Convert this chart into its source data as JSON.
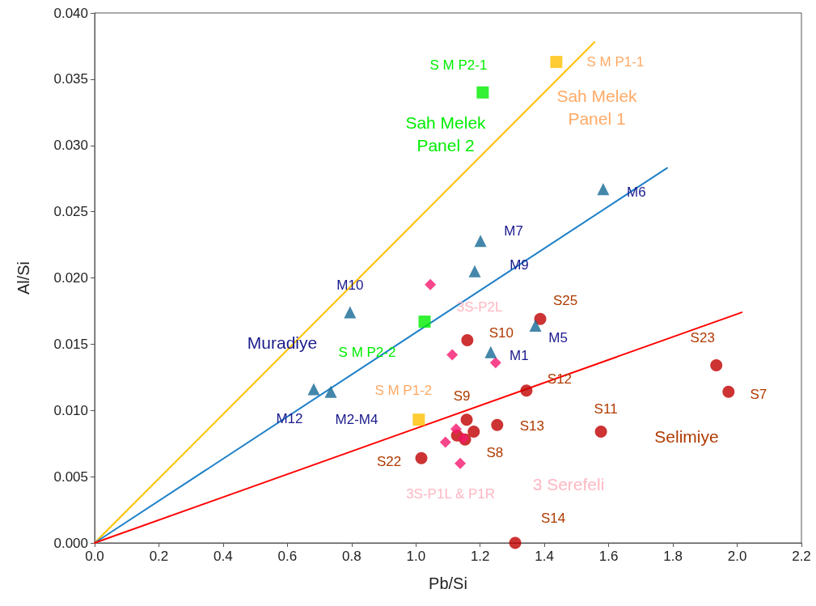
{
  "chart_data": {
    "type": "scatter",
    "xlabel": "Pb/Si",
    "ylabel": "Al/Si",
    "xlim": [
      0,
      2.2
    ],
    "xticks": [
      {
        "value": 0,
        "label": "0.0"
      },
      0.2,
      0.4,
      0.6,
      0.8,
      {
        "value": 1,
        "label": "1.0"
      },
      1.2,
      1.4,
      1.6,
      1.8,
      {
        "value": 2,
        "label": "2.0"
      },
      2.2
    ],
    "ylim": [
      0,
      0.04
    ],
    "yticks": [
      {
        "value": 0,
        "label": "0.000"
      },
      {
        "value": 0.005,
        "label": "0.005"
      },
      {
        "value": 0.01,
        "label": "0.010"
      },
      {
        "value": 0.015,
        "label": "0.015"
      },
      {
        "value": 0.02,
        "label": "0.020"
      },
      {
        "value": 0.025,
        "label": "0.025"
      },
      {
        "value": 0.03,
        "label": "0.030"
      },
      {
        "value": 0.035,
        "label": "0.035"
      },
      {
        "value": 0.04,
        "label": "0.040"
      }
    ],
    "grid": false,
    "series": [
      {
        "type": "line",
        "color": "#ffc000",
        "marker": "none",
        "x": [
          0,
          1.556
        ],
        "values": [
          0,
          0.0378
        ]
      },
      {
        "type": "line",
        "color": "#1f80c8",
        "marker": "none",
        "x": [
          0,
          1.782
        ],
        "values": [
          0,
          0.0283
        ]
      },
      {
        "type": "line",
        "color": "#ff0000",
        "marker": "none",
        "x": [
          0,
          2.014
        ],
        "values": [
          0,
          0.0174
        ]
      },
      {
        "color": "#156996",
        "marker": "triangle",
        "x": [
          1.583,
          1.201,
          1.183,
          0.795,
          1.372,
          1.233,
          0.682,
          0.735
        ],
        "values": [
          0.0267,
          0.0228,
          0.0205,
          0.0174,
          0.0164,
          0.0144,
          0.0116,
          0.0114
        ]
      },
      {
        "color": "#00ee00",
        "marker": "square",
        "x": [
          1.208,
          1.027
        ],
        "values": [
          0.034,
          0.0167
        ]
      },
      {
        "color": "#ffc000",
        "marker": "square",
        "x": [
          1.437,
          1.009
        ],
        "values": [
          0.0363,
          0.0093
        ]
      },
      {
        "color": "#f5186e",
        "marker": "diamond",
        "x": [
          1.045,
          1.113,
          1.248,
          1.125,
          1.092,
          1.148,
          1.138
        ],
        "values": [
          0.0195,
          0.0142,
          0.0136,
          0.0086,
          0.0076,
          0.0079,
          0.006
        ]
      },
      {
        "color": "#c00000",
        "marker": "circle",
        "x": [
          1.387,
          1.16,
          1.344,
          1.158,
          1.253,
          1.18,
          1.128,
          1.153,
          1.017,
          1.309,
          1.935,
          1.973,
          1.576
        ],
        "values": [
          0.0169,
          0.0153,
          0.0115,
          0.0093,
          0.0089,
          0.0084,
          0.0081,
          0.0078,
          0.0064,
          0,
          0.0134,
          0.0114,
          0.0084
        ]
      }
    ],
    "annotations": [
      {
        "text": "S M P2-1",
        "x": 1.208,
        "y": 0.034
      },
      {
        "text": "S M P1-1",
        "x": 1.437,
        "y": 0.0363
      },
      {
        "text": "M6",
        "x": 1.583,
        "y": 0.0267
      },
      {
        "text": "M7",
        "x": 1.201,
        "y": 0.0228
      },
      {
        "text": "M9",
        "x": 1.183,
        "y": 0.0205
      },
      {
        "text": "M10",
        "x": 0.795,
        "y": 0.0174
      },
      {
        "text": "S25",
        "x": 1.387,
        "y": 0.0169
      },
      {
        "text": "3S-P2L",
        "x": 1.045,
        "y": 0.0195
      },
      {
        "text": "S10",
        "x": 1.16,
        "y": 0.0153
      },
      {
        "text": "M5",
        "x": 1.372,
        "y": 0.0164
      },
      {
        "text": "S M P2-2",
        "x": 1.027,
        "y": 0.0167
      },
      {
        "text": "M1",
        "x": 1.233,
        "y": 0.0144
      },
      {
        "text": "S23",
        "x": 1.935,
        "y": 0.0134
      },
      {
        "text": "S12",
        "x": 1.344,
        "y": 0.0115
      },
      {
        "text": "S M P1-2",
        "x": 1.009,
        "y": 0.0093
      },
      {
        "text": "S9",
        "x": 1.158,
        "y": 0.0093
      },
      {
        "text": "S7",
        "x": 1.973,
        "y": 0.0114
      },
      {
        "text": "M12",
        "x": 0.682,
        "y": 0.0116
      },
      {
        "text": "M2-M4",
        "x": 0.735,
        "y": 0.0114
      },
      {
        "text": "S13",
        "x": 1.253,
        "y": 0.0089
      },
      {
        "text": "S11",
        "x": 1.576,
        "y": 0.0084
      },
      {
        "text": "S8",
        "x": 1.18,
        "y": 0.0084
      },
      {
        "text": "S22",
        "x": 1.017,
        "y": 0.0064
      },
      {
        "text": "3S-P1L & P1R",
        "x": 1.138,
        "y": 0.006
      },
      {
        "text": "S14",
        "x": 1.309,
        "y": 0
      },
      "Sah Melek\nPanel 1",
      "Sah Melek\nPanel 2",
      "Muradiye",
      "Selimiye",
      "3 Serefeli"
    ]
  }
}
